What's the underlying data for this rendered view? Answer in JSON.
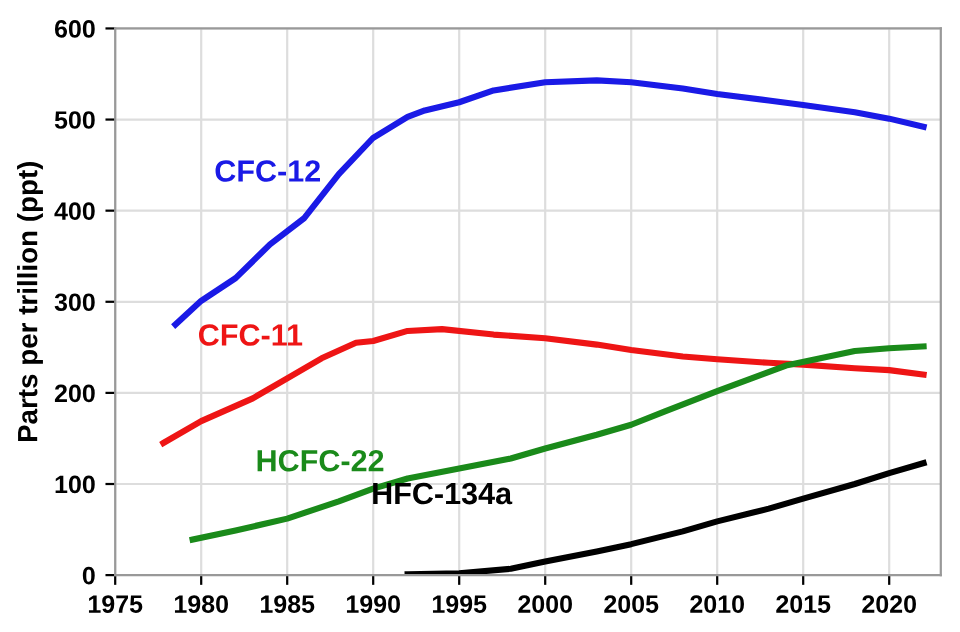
{
  "chart_data": {
    "type": "line",
    "ylabel": "Parts per trillion (ppt)",
    "xlim": [
      1975,
      2023
    ],
    "xticks": [
      1975,
      1980,
      1985,
      1990,
      1995,
      2000,
      2005,
      2010,
      2015,
      2020
    ],
    "ylim": [
      0,
      600
    ],
    "yticks": [
      0,
      100,
      200,
      300,
      400,
      500,
      600
    ],
    "grid": true,
    "legend": false,
    "marker": "none",
    "line_style": "solid",
    "series": [
      {
        "name": "CFC-12",
        "color": "#1a1ae6",
        "x": [
          1978.5,
          1980,
          1982,
          1984,
          1986,
          1988,
          1990,
          1992,
          1993,
          1995,
          1997,
          2000,
          2003,
          2005,
          2008,
          2010,
          2013,
          2015,
          2018,
          2020,
          2022
        ],
        "values": [
          275,
          301,
          326,
          363,
          392,
          440,
          480,
          503,
          510,
          519,
          532,
          541,
          543,
          541,
          534,
          528,
          521,
          516,
          508,
          501,
          492
        ]
      },
      {
        "name": "CFC-11",
        "color": "#ee1515",
        "x": [
          1977.8,
          1980,
          1983,
          1985,
          1987,
          1989,
          1990,
          1992,
          1994,
          1997,
          2000,
          2003,
          2005,
          2008,
          2010,
          2013,
          2015,
          2018,
          2020,
          2022
        ],
        "values": [
          145,
          169,
          194,
          216,
          238,
          255,
          257,
          268,
          270,
          264,
          260,
          253,
          247,
          240,
          237,
          233,
          231,
          227,
          225,
          220
        ]
      },
      {
        "name": "HCFC-22",
        "color": "#1a8a1a",
        "x": [
          1979.5,
          1982,
          1985,
          1988,
          1990,
          1992,
          1995,
          1998,
          2000,
          2003,
          2005,
          2007,
          2010,
          2012,
          2014,
          2016,
          2018,
          2020,
          2022
        ],
        "values": [
          39,
          49,
          62,
          81,
          95,
          106,
          117,
          128,
          139,
          154,
          165,
          180,
          202,
          216,
          230,
          238,
          246,
          249,
          251
        ]
      },
      {
        "name": "HFC-134a",
        "color": "#000000",
        "x": [
          1992,
          1995,
          1998,
          2000,
          2003,
          2005,
          2008,
          2010,
          2013,
          2015,
          2018,
          2020,
          2022
        ],
        "values": [
          1,
          2,
          7,
          15,
          26,
          34,
          48,
          59,
          73,
          84,
          100,
          112,
          123
        ]
      }
    ]
  }
}
